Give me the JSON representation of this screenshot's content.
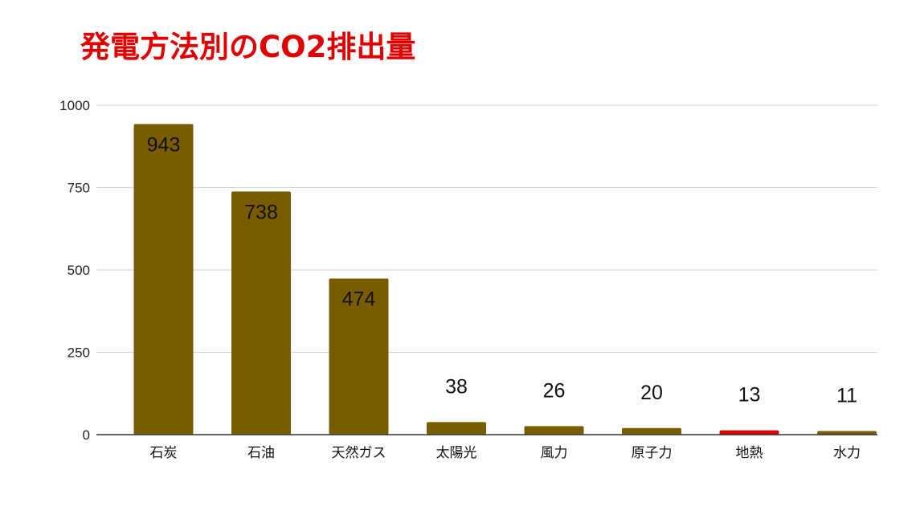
{
  "chart_data": {
    "type": "bar",
    "title": "発電方法別のCO2排出量",
    "categories": [
      "石炭",
      "石油",
      "天然ガス",
      "太陽光",
      "風力",
      "原子力",
      "地熱",
      "水力"
    ],
    "values": [
      943,
      738,
      474,
      38,
      26,
      20,
      13,
      11
    ],
    "highlight_index": 6,
    "ylim": [
      0,
      1000
    ],
    "yticks": [
      0,
      250,
      500,
      750,
      1000
    ],
    "ytick_labels": [
      "0",
      "250",
      "500",
      "750",
      "1000"
    ],
    "xlabel": "",
    "ylabel": "",
    "grid": true,
    "legend": "none",
    "colors": {
      "bar": "#7a5c00",
      "highlight_bar": "#e00000",
      "highlight_label": "#cc0000",
      "title": "#e00000",
      "grid": "#d0d0d0",
      "axis": "#333333"
    }
  }
}
